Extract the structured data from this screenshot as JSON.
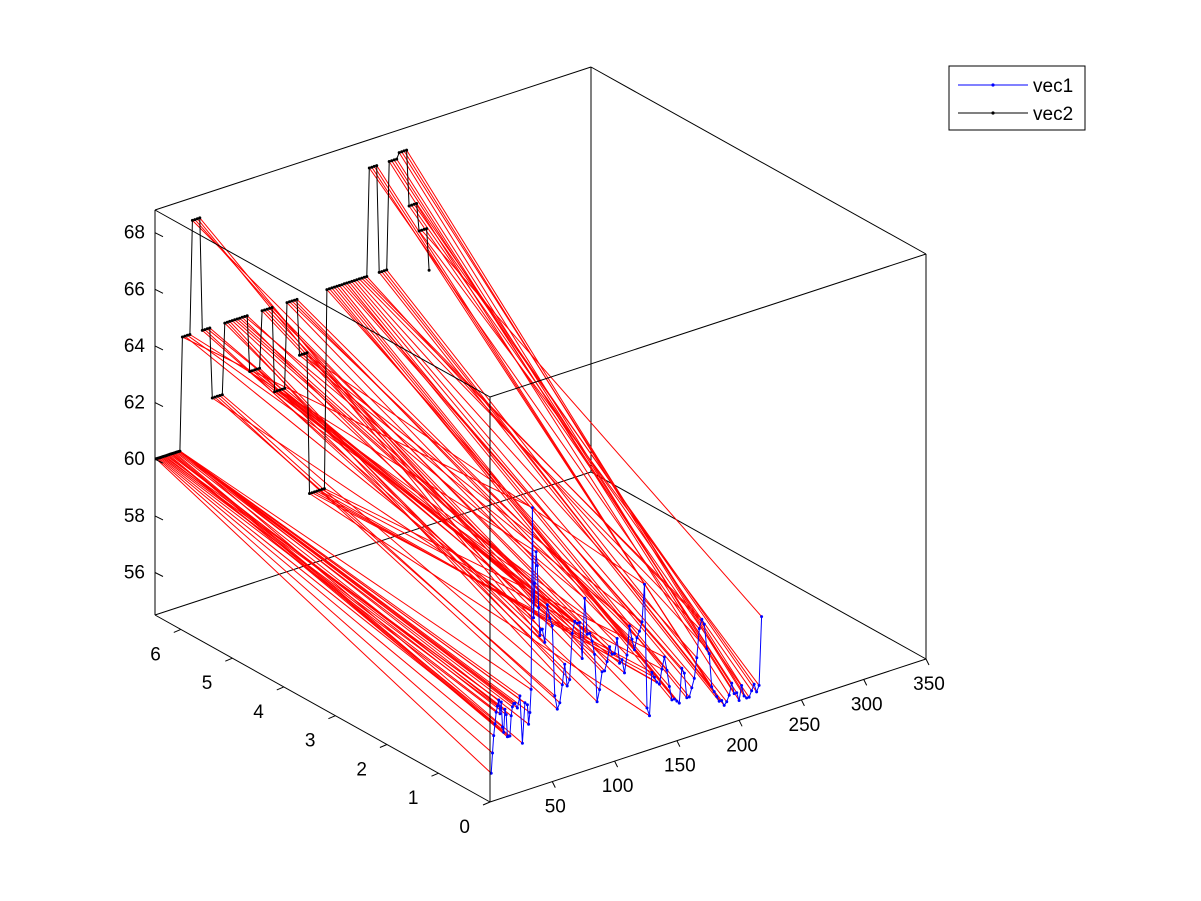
{
  "figure": {
    "background": "#ffffff"
  },
  "chart_data": {
    "type": "line",
    "projection": "3d",
    "title": "",
    "xlabel": "",
    "ylabel": "",
    "zlabel": "",
    "grid": false,
    "legend": {
      "placement": "top-right",
      "entries": [
        "vec1",
        "vec2"
      ]
    },
    "axes": {
      "x": {
        "range": [
          0,
          350
        ],
        "ticks": [
          50,
          100,
          150,
          200,
          250,
          300,
          350
        ],
        "tick_labels": [
          "50",
          "100",
          "150",
          "200",
          "250",
          "300",
          "350"
        ]
      },
      "y": {
        "range": [
          0,
          6.5
        ],
        "ticks": [
          0,
          1,
          2,
          3,
          4,
          5,
          6
        ],
        "tick_labels": [
          "0",
          "1",
          "2",
          "3",
          "4",
          "5",
          "6"
        ]
      },
      "z": {
        "range": [
          54.5,
          68.8
        ],
        "ticks": [
          56,
          58,
          60,
          62,
          64,
          66,
          68
        ],
        "tick_labels": [
          "56",
          "58",
          "60",
          "62",
          "64",
          "66",
          "68"
        ]
      }
    },
    "colors": {
      "vec1": "#0000ff",
      "vec2": "#000000",
      "links": "#ff0000"
    },
    "series": [
      {
        "name": "vec1",
        "color": "#0000ff",
        "marker": "dot",
        "y_value": 0,
        "x": [
          1,
          2,
          3,
          4,
          5,
          6,
          7,
          8,
          9,
          10,
          11,
          12,
          13,
          14,
          15,
          16,
          17,
          18,
          19,
          20,
          22,
          24,
          26,
          28,
          30,
          31,
          32,
          33,
          34,
          35,
          36,
          37,
          38,
          39,
          40,
          41,
          42,
          44,
          46,
          48,
          50,
          52,
          54,
          56,
          58,
          60,
          62,
          64,
          66,
          68,
          70,
          72,
          74,
          76,
          78,
          80,
          82,
          84,
          86,
          88,
          90,
          92,
          94,
          96,
          98,
          100,
          102,
          104,
          106,
          108,
          110,
          112,
          114,
          116,
          118,
          120,
          122,
          124,
          126,
          128,
          130,
          132,
          134,
          136,
          138,
          140,
          142,
          144,
          146,
          148,
          150,
          152,
          154,
          156,
          158,
          160,
          162,
          164,
          166,
          168,
          170,
          172,
          174,
          176,
          178,
          180,
          182,
          184,
          186,
          188,
          190,
          192,
          194,
          196,
          198,
          200,
          202,
          204,
          206,
          208,
          210,
          212,
          214,
          216,
          218
        ],
        "z": [
          55.5,
          56.2,
          56.8,
          57.2,
          57.6,
          57.8,
          58.0,
          57.5,
          57.9,
          57.0,
          56.8,
          57.6,
          57.4,
          56.6,
          56.6,
          56.6,
          57.3,
          57.6,
          57.7,
          57.7,
          57.5,
          57.9,
          56.2,
          57.6,
          57.5,
          56.8,
          57.2,
          58.0,
          64.4,
          60.5,
          61.7,
          62.8,
          62.3,
          60.8,
          59.8,
          60.0,
          60.0,
          59.5,
          60.8,
          60.3,
          60.0,
          57.5,
          57.0,
          57.2,
          57.8,
          58.5,
          57.7,
          57.9,
          59.5,
          59.9,
          59.8,
          59.8,
          58.5,
          60.6,
          59.3,
          59.3,
          59.0,
          58.5,
          56.8,
          57.2,
          57.8,
          57.8,
          58.1,
          58.6,
          58.3,
          58.3,
          58.8,
          57.9,
          58.0,
          57.5,
          58.1,
          59.1,
          58.6,
          58.2,
          58.6,
          58.8,
          59.1,
          60.4,
          56.0,
          55.7,
          57.2,
          57.0,
          56.8,
          56.7,
          57.2,
          57.6,
          57.1,
          56.5,
          56.0,
          56.0,
          55.9,
          55.8,
          57.0,
          56.8,
          55.9,
          55.9,
          56.2,
          56.5,
          57.2,
          58.2,
          58.5,
          58.3,
          57.4,
          57.2,
          56.0,
          55.8,
          55.6,
          55.4,
          55.4,
          55.2,
          55.3,
          55.5,
          55.9,
          55.5,
          55.5,
          55.2,
          55.7,
          55.3,
          55.2,
          55.2,
          55.4,
          55.6,
          55.3,
          55.5,
          57.9
        ]
      },
      {
        "name": "vec2",
        "color": "#000000",
        "marker": "dot",
        "y_value": 6.5,
        "x": [
          1,
          2,
          3,
          4,
          5,
          6,
          7,
          8,
          9,
          10,
          11,
          12,
          13,
          14,
          15,
          16,
          17,
          18,
          19,
          20,
          22,
          24,
          26,
          28,
          30,
          32,
          34,
          36,
          38,
          40,
          42,
          44,
          46,
          48,
          50,
          52,
          54,
          56,
          58,
          60,
          62,
          64,
          66,
          68,
          70,
          72,
          74,
          76,
          78,
          80,
          82,
          84,
          86,
          88,
          90,
          92,
          94,
          96,
          98,
          100,
          102,
          104,
          106,
          108,
          110,
          112,
          114,
          116,
          118,
          120,
          122,
          124,
          126,
          128,
          130,
          132,
          134,
          136,
          138,
          140,
          142,
          144,
          146,
          148,
          150,
          152,
          154,
          156,
          158,
          160,
          162,
          164,
          166,
          168,
          170,
          172,
          174,
          176,
          178,
          180,
          182,
          184,
          186,
          188,
          190,
          192,
          194,
          196,
          198,
          200,
          202,
          204,
          206,
          208,
          210,
          212,
          214,
          216,
          218,
          220
        ],
        "z": [
          60.0,
          60.0,
          60.0,
          60.0,
          60.0,
          60.0,
          60.0,
          60.0,
          60.0,
          60.0,
          60.0,
          60.0,
          60.0,
          60.0,
          60.0,
          60.0,
          60.0,
          60.0,
          60.0,
          60.0,
          64.0,
          64.0,
          64.0,
          64.0,
          68.0,
          68.0,
          68.0,
          68.0,
          64.0,
          64.0,
          64.0,
          64.0,
          61.5,
          61.5,
          61.5,
          61.5,
          61.5,
          64.0,
          64.0,
          64.0,
          64.0,
          64.0,
          64.0,
          64.0,
          64.0,
          64.0,
          64.0,
          62.0,
          62.0,
          62.0,
          62.0,
          62.0,
          64.0,
          64.0,
          64.0,
          64.0,
          64.0,
          61.0,
          61.0,
          61.0,
          61.0,
          61.0,
          64.0,
          64.0,
          64.0,
          64.0,
          64.0,
          62.0,
          62.0,
          62.0,
          62.0,
          57.0,
          57.0,
          57.0,
          57.0,
          57.0,
          57.0,
          57.0,
          64.0,
          64.0,
          64.0,
          64.0,
          64.0,
          64.0,
          64.0,
          64.0,
          64.0,
          64.0,
          64.0,
          64.0,
          64.0,
          64.0,
          64.0,
          64.0,
          64.0,
          67.8,
          67.8,
          67.8,
          67.8,
          64.0,
          64.0,
          64.0,
          64.0,
          67.8,
          67.8,
          67.8,
          67.8,
          68.0,
          68.0,
          68.0,
          68.0,
          66.0,
          66.0,
          66.0,
          66.0,
          65.0,
          65.0,
          65.0,
          65.0,
          63.5,
          63.5,
          63.5,
          63.5,
          62.0
        ]
      }
    ],
    "links": {
      "color": "#ff0000",
      "description": "",
      "pairs": [
        [
          1,
          1
        ],
        [
          2,
          2
        ],
        [
          3,
          3
        ],
        [
          4,
          4
        ],
        [
          5,
          5
        ],
        [
          6,
          6
        ],
        [
          7,
          7
        ],
        [
          8,
          8
        ],
        [
          9,
          9
        ],
        [
          10,
          10
        ],
        [
          11,
          11
        ],
        [
          12,
          12
        ],
        [
          13,
          13
        ],
        [
          14,
          14
        ],
        [
          15,
          15
        ],
        [
          16,
          16
        ],
        [
          17,
          17
        ],
        [
          18,
          18
        ],
        [
          19,
          19
        ],
        [
          20,
          20
        ],
        [
          21,
          20
        ],
        [
          22,
          20
        ],
        [
          23,
          20
        ],
        [
          24,
          20
        ],
        [
          25,
          20
        ],
        [
          26,
          20
        ],
        [
          27,
          20
        ],
        [
          28,
          20
        ],
        [
          29,
          21
        ],
        [
          30,
          22
        ],
        [
          31,
          23
        ],
        [
          32,
          24
        ],
        [
          33,
          25
        ],
        [
          34,
          26
        ],
        [
          35,
          27
        ],
        [
          36,
          28
        ],
        [
          37,
          29
        ],
        [
          38,
          30
        ],
        [
          39,
          31
        ],
        [
          40,
          32
        ],
        [
          41,
          33
        ],
        [
          42,
          34
        ],
        [
          43,
          35
        ],
        [
          44,
          36
        ],
        [
          45,
          37
        ],
        [
          46,
          38
        ],
        [
          47,
          39
        ],
        [
          48,
          40
        ],
        [
          49,
          41
        ],
        [
          50,
          42
        ],
        [
          51,
          43
        ],
        [
          52,
          44
        ],
        [
          53,
          45
        ],
        [
          54,
          46
        ],
        [
          55,
          47
        ],
        [
          56,
          48
        ],
        [
          57,
          49
        ],
        [
          58,
          50
        ],
        [
          59,
          51
        ],
        [
          60,
          52
        ],
        [
          61,
          53
        ],
        [
          62,
          54
        ],
        [
          63,
          55
        ],
        [
          64,
          56
        ],
        [
          65,
          57
        ],
        [
          66,
          58
        ],
        [
          67,
          59
        ],
        [
          68,
          60
        ],
        [
          69,
          61
        ],
        [
          70,
          62
        ],
        [
          71,
          63
        ],
        [
          72,
          64
        ],
        [
          73,
          65
        ],
        [
          74,
          66
        ],
        [
          75,
          67
        ],
        [
          76,
          68
        ],
        [
          77,
          69
        ],
        [
          78,
          70
        ],
        [
          79,
          71
        ],
        [
          80,
          72
        ],
        [
          81,
          73
        ],
        [
          82,
          74
        ],
        [
          83,
          75
        ],
        [
          84,
          76
        ],
        [
          85,
          77
        ],
        [
          86,
          78
        ],
        [
          87,
          79
        ],
        [
          88,
          80
        ],
        [
          89,
          81
        ],
        [
          90,
          82
        ],
        [
          91,
          83
        ],
        [
          92,
          84
        ],
        [
          93,
          85
        ],
        [
          94,
          86
        ],
        [
          95,
          87
        ],
        [
          96,
          88
        ],
        [
          97,
          89
        ],
        [
          98,
          90
        ],
        [
          99,
          91
        ],
        [
          100,
          92
        ],
        [
          101,
          93
        ],
        [
          102,
          94
        ],
        [
          103,
          95
        ],
        [
          104,
          96
        ],
        [
          105,
          97
        ],
        [
          106,
          98
        ],
        [
          107,
          99
        ],
        [
          108,
          100
        ],
        [
          109,
          101
        ],
        [
          110,
          102
        ],
        [
          111,
          103
        ],
        [
          112,
          104
        ],
        [
          113,
          105
        ],
        [
          114,
          106
        ],
        [
          115,
          107
        ],
        [
          116,
          108
        ],
        [
          117,
          109
        ],
        [
          118,
          110
        ],
        [
          119,
          111
        ],
        [
          120,
          112
        ],
        [
          121,
          113
        ],
        [
          122,
          114
        ],
        [
          123,
          115
        ],
        [
          124,
          116
        ],
        [
          125,
          117
        ]
      ]
    }
  }
}
